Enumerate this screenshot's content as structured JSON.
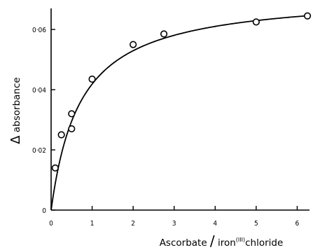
{
  "chart_data": {
    "type": "scatter",
    "title": "",
    "xlabel": "Ascorbate / iron(III) chloride",
    "xlabel_parts": {
      "before": "Ascorbate ",
      "slash": "/",
      "middle": " iron",
      "superscript": "(III)",
      "after": "chloride"
    },
    "ylabel": "Δ absorbance",
    "ylabel_parts": {
      "delta": "Δ",
      "text": " absorbance"
    },
    "xlim": [
      0,
      6.3
    ],
    "ylim": [
      0,
      0.067
    ],
    "x_ticks": [
      0,
      1,
      2,
      3,
      4,
      5,
      6
    ],
    "x_tick_labels": [
      "0",
      "1",
      "2",
      "3",
      "4",
      "5",
      "6"
    ],
    "y_ticks": [
      0,
      0.02,
      0.04,
      0.06
    ],
    "y_tick_labels": [
      "0",
      "0·02",
      "0·04",
      "0·06"
    ],
    "grid": false,
    "legend": "none",
    "series": [
      {
        "points": [
          [
            0.1,
            0.014
          ],
          [
            0.25,
            0.025
          ],
          [
            0.5,
            0.032
          ],
          [
            0.5,
            0.027
          ],
          [
            1.0,
            0.0435
          ],
          [
            2.0,
            0.055
          ],
          [
            2.75,
            0.0585
          ],
          [
            5.0,
            0.0625
          ],
          [
            6.25,
            0.0645
          ]
        ]
      }
    ],
    "fit_curve": {
      "type": "saturation",
      "ymax": 0.072,
      "half_x": 0.72
    },
    "line_color": "#000000",
    "marker": "open-circle"
  }
}
